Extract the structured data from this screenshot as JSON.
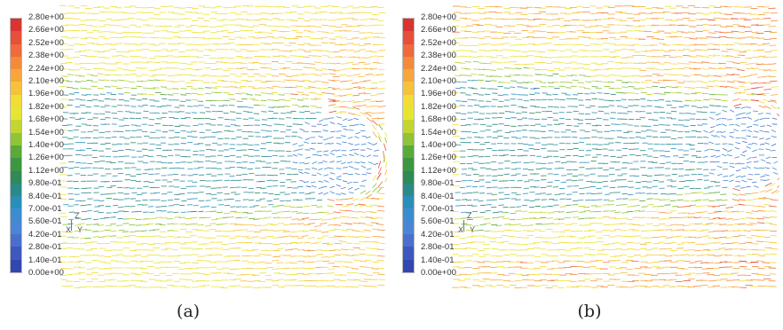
{
  "panels": [
    {
      "caption": "(a)",
      "axis": {
        "z": "Z",
        "x": "X",
        "y": "Y"
      }
    },
    {
      "caption": "(b)",
      "axis": {
        "z": "Z",
        "x": "X",
        "y": "Y"
      }
    }
  ],
  "chart_data": {
    "type": "vector-field",
    "colorbar": {
      "ticks": [
        "2.80e+00",
        "2.66e+00",
        "2.52e+00",
        "2.38e+00",
        "2.24e+00",
        "2.10e+00",
        "1.96e+00",
        "1.82e+00",
        "1.68e+00",
        "1.54e+00",
        "1.40e+00",
        "1.26e+00",
        "1.12e+00",
        "9.80e-01",
        "8.40e-01",
        "7.00e-01",
        "5.60e-01",
        "4.20e-01",
        "2.80e-01",
        "1.40e-01",
        "0.00e+00"
      ],
      "range": [
        0.0,
        2.8
      ],
      "colors": [
        "#d9342f",
        "#e6503a",
        "#ef6a3c",
        "#f48b3a",
        "#f7a63a",
        "#f6c23a",
        "#f2dc36",
        "#e6e632",
        "#c2d530",
        "#8ec435",
        "#5aaa3a",
        "#3d9640",
        "#2e8a56",
        "#2a8a86",
        "#2a8fb8",
        "#3a8ed0",
        "#4a86d6",
        "#4a6fcc",
        "#3d58be",
        "#3347b0"
      ]
    },
    "free_stream_value": 1.82
  }
}
